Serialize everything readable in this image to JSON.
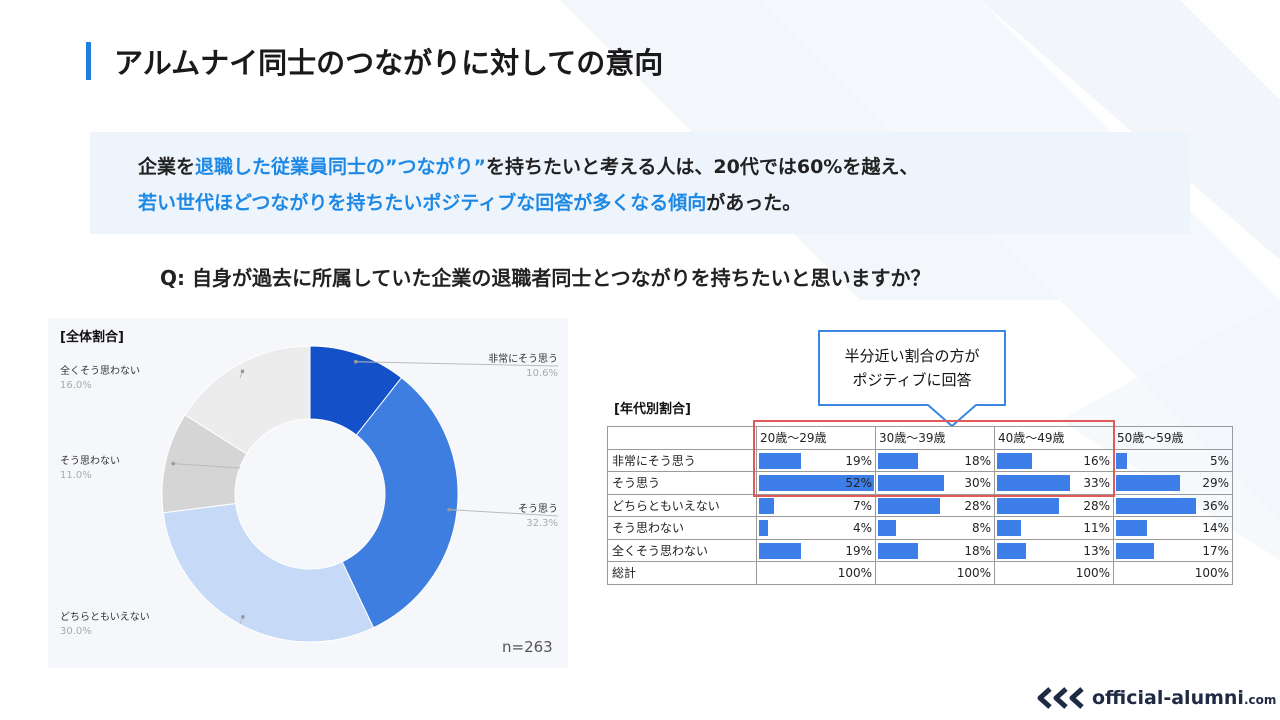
{
  "title": "アルムナイ同士のつながりに対しての意向",
  "summary": {
    "line1": [
      {
        "text": "企業を",
        "hl": false
      },
      {
        "text": "退職した従業員同士の”つながり”",
        "hl": true
      },
      {
        "text": "を持ちたいと考える人は、20代では60%を越え、",
        "hl": false
      }
    ],
    "line2": [
      {
        "text": "若い世代ほどつながりを持ちたいポジティブな回答が多くなる傾向",
        "hl": true
      },
      {
        "text": "があった。",
        "hl": false
      }
    ]
  },
  "question": "Q: 自身が過去に所属していた企業の退職者同士とつながりを持ちたいと思いますか？",
  "overall_label": "[全体割合]",
  "age_label": "[年代別割合]",
  "sample_size": "n=263",
  "callout": {
    "line1": "半分近い割合の方が",
    "line2": "ポジティブに回答"
  },
  "colors": {
    "accent": "#1e88e5",
    "bar": "#3d7ee8",
    "highlight_box": "#e05a5a",
    "callout_border": "#3b86e0"
  },
  "logo": {
    "icon": "triple-chevron-left-icon",
    "text": "official-alumni",
    "suffix": ".com"
  },
  "chart_data": [
    {
      "type": "pie",
      "donut": true,
      "labels": [
        "非常にそう思う",
        "そう思う",
        "どちらともいえない",
        "そう思わない",
        "全くそう思わない"
      ],
      "values": [
        10.6,
        32.3,
        30.0,
        11.0,
        16.0
      ],
      "value_labels": [
        "10.6%",
        "32.3%",
        "30.0%",
        "11.0%",
        "16.0%"
      ],
      "colors": [
        "#1451c9",
        "#3d7ee0",
        "#c6d9f6",
        "#d5d5d5",
        "#ececec"
      ]
    },
    {
      "type": "table",
      "columns": [
        "20歳〜29歳",
        "30歳〜39歳",
        "40歳〜49歳",
        "50歳〜59歳"
      ],
      "rows": [
        {
          "label": "非常にそう思う",
          "values": [
            19,
            18,
            16,
            5
          ]
        },
        {
          "label": "そう思う",
          "values": [
            52,
            30,
            33,
            29
          ]
        },
        {
          "label": "どちらともいえない",
          "values": [
            7,
            28,
            28,
            36
          ]
        },
        {
          "label": "そう思わない",
          "values": [
            4,
            8,
            11,
            14
          ]
        },
        {
          "label": "全くそう思わない",
          "values": [
            19,
            18,
            13,
            17
          ]
        }
      ],
      "total_row": {
        "label": "総計",
        "values": [
          100,
          100,
          100,
          100
        ]
      },
      "value_suffix": "%",
      "bar_max": 52
    }
  ]
}
